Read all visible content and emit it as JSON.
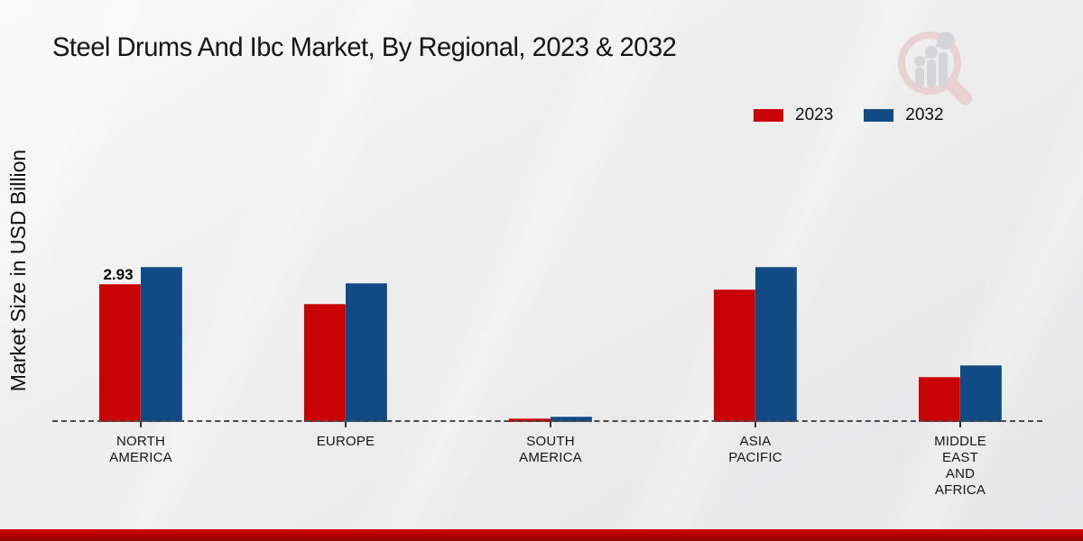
{
  "title": "Steel Drums And Ibc Market, By Regional, 2023 & 2032",
  "ylabel": "Market Size in USD Billion",
  "legend": [
    {
      "label": "2023",
      "color": "#c90305"
    },
    {
      "label": "2032",
      "color": "#114b85"
    }
  ],
  "colors": {
    "series_2023": "#c90305",
    "series_2032": "#114b85",
    "footer_band": "#b30101",
    "baseline": "#4b4b4b",
    "background": "#ececec"
  },
  "watermark": "market-research-magnifier-logo",
  "chart_data": {
    "type": "bar",
    "title": "Steel Drums And Ibc Market, By Regional, 2023 & 2032",
    "xlabel": "",
    "ylabel": "Market Size in USD Billion",
    "ylim": [
      0,
      3.6
    ],
    "grid": "off",
    "legend_position": "top-right",
    "categories": [
      "NORTH AMERICA",
      "EUROPE",
      "SOUTH AMERICA",
      "ASIA PACIFIC",
      "MIDDLE EAST AND AFRICA"
    ],
    "series": [
      {
        "name": "2023",
        "color": "#c90305",
        "values": [
          2.93,
          2.5,
          0.08,
          2.82,
          0.96
        ]
      },
      {
        "name": "2032",
        "color": "#114b85",
        "values": [
          3.3,
          2.95,
          0.12,
          3.3,
          1.21
        ]
      }
    ],
    "bar_labels": [
      {
        "series_index": 0,
        "category_index": 0,
        "text": "2.93"
      }
    ]
  }
}
